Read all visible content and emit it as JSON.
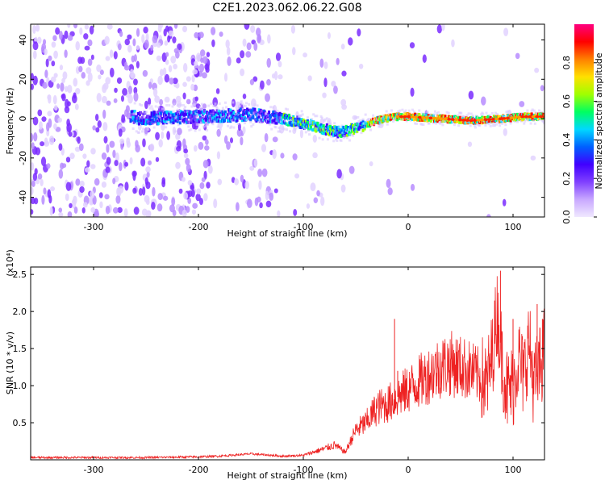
{
  "figure": {
    "title": "C2E1.2023.062.06.22.G08"
  },
  "chart_data": [
    {
      "type": "heatmap",
      "xlabel": "Height of straight line (km)",
      "ylabel": "Frequency (Hz)",
      "xlim": [
        -360,
        130
      ],
      "ylim": [
        -50,
        48
      ],
      "xticks": [
        -300,
        -200,
        -100,
        0,
        100
      ],
      "yticks": [
        -40,
        -20,
        0,
        20,
        40
      ],
      "signal_track": {
        "x": [
          -260,
          -200,
          -150,
          -120,
          -95,
          -75,
          -65,
          -50,
          -30,
          -15,
          0,
          30,
          60,
          90,
          110,
          130
        ],
        "frequency": [
          0,
          1,
          2,
          0,
          -3,
          -6,
          -7,
          -5,
          -1,
          1,
          1,
          0,
          -1,
          0,
          1,
          1
        ]
      },
      "colorbar": {
        "label": "Normalized spectral amplitude",
        "range": [
          0.0,
          1.0
        ],
        "ticks": [
          0.0,
          0.2,
          0.4,
          0.6,
          0.8
        ],
        "colors": [
          "#f0e8ff",
          "#c8a8ff",
          "#8040ff",
          "#4000ff",
          "#0060ff",
          "#00d8ff",
          "#00ff60",
          "#a0ff00",
          "#ffe000",
          "#ff8000",
          "#ff0000",
          "#ff0080"
        ]
      }
    },
    {
      "type": "line",
      "xlabel": "Height of straight line (km)",
      "ylabel": "SNR (10 * v/v)",
      "scale_label": "(x10⁴)",
      "xlim": [
        -360,
        130
      ],
      "ylim": [
        0,
        2.6
      ],
      "xticks": [
        -300,
        -200,
        -100,
        0,
        100
      ],
      "yticks": [
        0.5,
        1.0,
        1.5,
        2.0,
        2.5
      ],
      "ytick_labels": [
        "0.5",
        "1.0",
        "1.5",
        "2.0",
        "2.5"
      ],
      "color": "#ee2222",
      "series": [
        {
          "x": [
            -360,
            -300,
            -250,
            -200,
            -180,
            -150,
            -120,
            -100,
            -80,
            -70,
            -60,
            -50,
            -40,
            -30,
            -20,
            -10,
            0,
            10,
            20,
            30,
            40,
            50,
            60,
            70,
            75,
            80,
            85,
            90,
            95,
            100,
            105,
            110,
            115,
            120,
            125,
            130
          ],
          "values": [
            0.03,
            0.03,
            0.03,
            0.04,
            0.05,
            0.08,
            0.05,
            0.06,
            0.15,
            0.2,
            0.1,
            0.4,
            0.5,
            0.7,
            0.75,
            0.85,
            0.95,
            1.05,
            1.15,
            1.25,
            1.3,
            1.25,
            1.2,
            1.1,
            1.0,
            1.4,
            2.0,
            1.3,
            0.9,
            1.0,
            1.4,
            1.1,
            1.6,
            1.0,
            1.2,
            1.5
          ],
          "peaks": [
            {
              "x": -13,
              "y": 1.9
            },
            {
              "x": -10,
              "y": 1.2
            },
            {
              "x": 88,
              "y": 2.55
            },
            {
              "x": 100,
              "y": 1.9
            },
            {
              "x": 123,
              "y": 2.1
            },
            {
              "x": 128,
              "y": 1.9
            }
          ]
        }
      ]
    }
  ]
}
